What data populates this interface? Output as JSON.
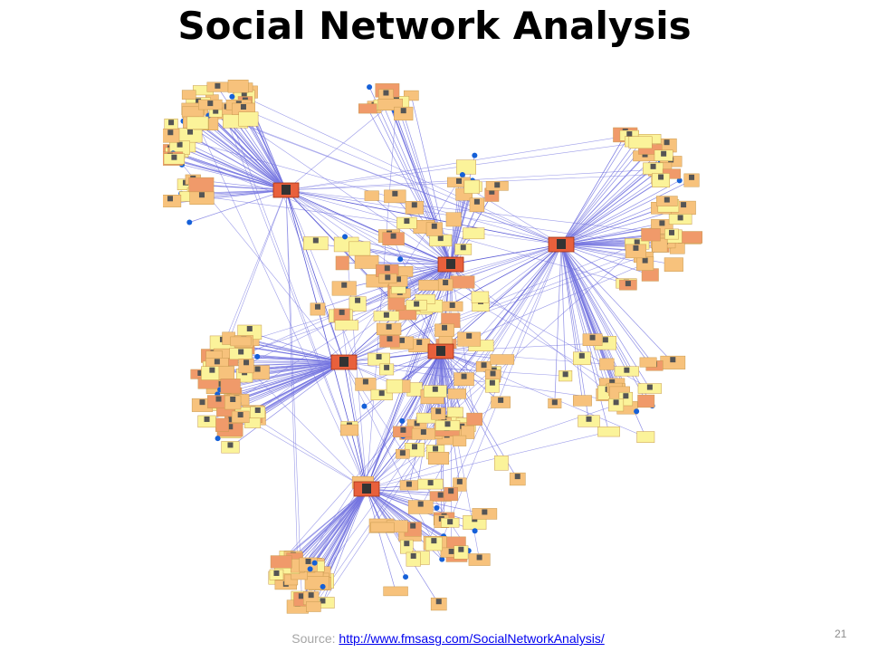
{
  "header": {
    "title": "Social Network Analysis"
  },
  "footer": {
    "source_label": "Source:",
    "source_link": "http://www.fmsasg.com/SocialNetworkAnalysis/",
    "slide_number": 21
  }
}
